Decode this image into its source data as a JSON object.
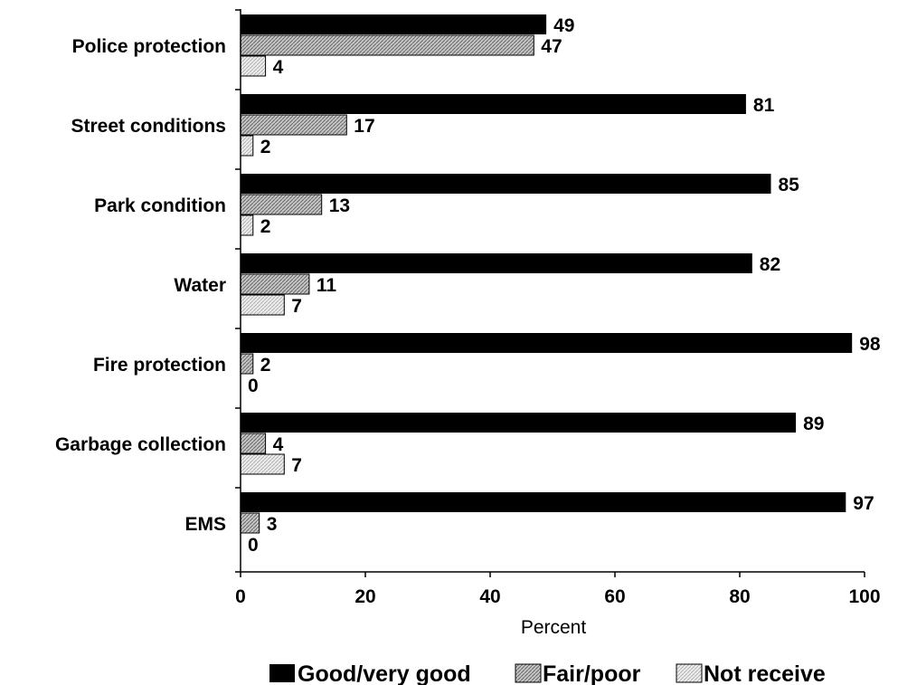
{
  "chart_data": {
    "type": "bar",
    "orientation": "horizontal",
    "categories": [
      "Police protection",
      "Street conditions",
      "Park condition",
      "Water",
      "Fire protection",
      "Garbage collection",
      "EMS"
    ],
    "series": [
      {
        "name": "Good/very good",
        "values": [
          49,
          81,
          85,
          82,
          98,
          89,
          97
        ],
        "color": "#000000",
        "pattern": "solid"
      },
      {
        "name": "Fair/poor",
        "values": [
          47,
          17,
          13,
          11,
          2,
          4,
          3
        ],
        "color": "#bdbdbd",
        "pattern": "dense-hatch"
      },
      {
        "name": "Not receive",
        "values": [
          4,
          2,
          2,
          7,
          0,
          7,
          0
        ],
        "color": "#e6e6e6",
        "pattern": "light-hatch"
      }
    ],
    "xlabel": "Percent",
    "xticks": [
      "0",
      "20",
      "40",
      "60",
      "80",
      "100"
    ],
    "xlim": [
      0,
      100
    ],
    "grid": false,
    "data_labels": true,
    "legend_position": "bottom"
  }
}
